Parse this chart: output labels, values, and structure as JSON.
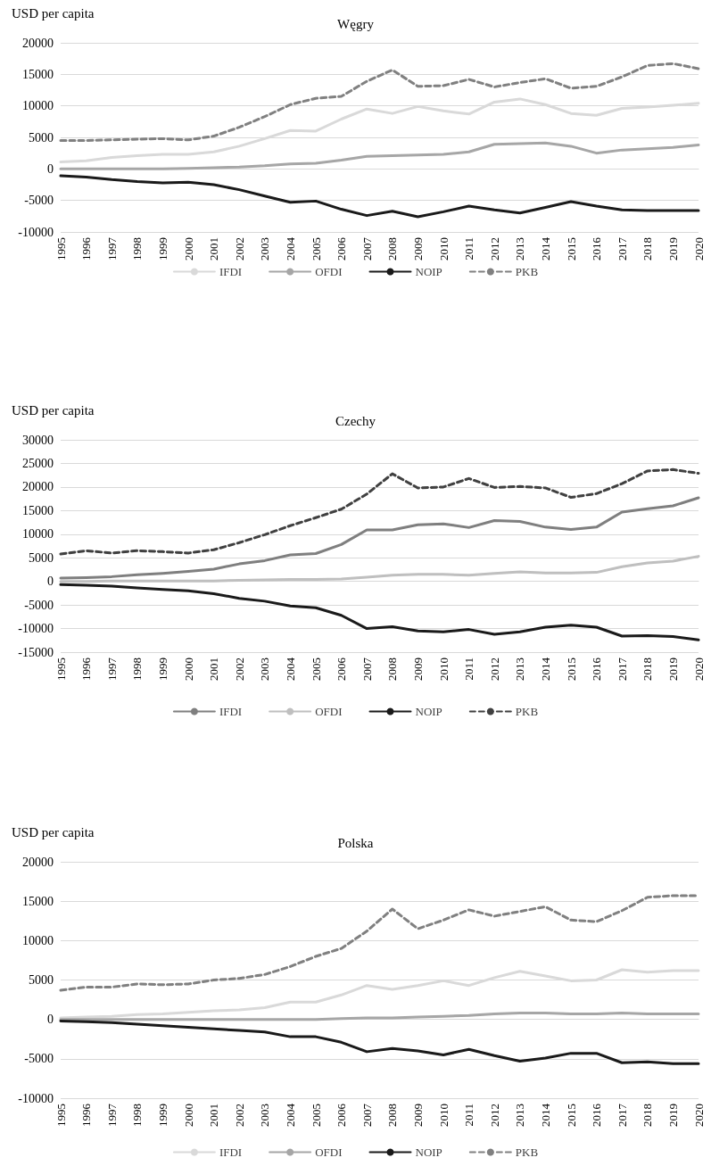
{
  "chart_data": [
    {
      "type": "line",
      "title": "Węgry",
      "ylabel": "USD per capita",
      "categories": [
        "1995",
        "1996",
        "1997",
        "1998",
        "1999",
        "2000",
        "2001",
        "2002",
        "2003",
        "2004",
        "2005",
        "2006",
        "2007",
        "2008",
        "2009",
        "2010",
        "2011",
        "2012",
        "2013",
        "2014",
        "2015",
        "2016",
        "2017",
        "2018",
        "2019",
        "2020"
      ],
      "ylim": [
        -10000,
        20000
      ],
      "yticks": [
        -10000,
        -5000,
        0,
        5000,
        10000,
        15000,
        20000
      ],
      "grid": "y",
      "legend": "bottom",
      "marker": "none",
      "series": [
        {
          "name": "IFDI",
          "color": "#d9d9d9",
          "line_style": "solid",
          "values": [
            1100,
            1300,
            1800,
            2100,
            2300,
            2300,
            2700,
            3600,
            4800,
            6100,
            6000,
            7900,
            9500,
            8800,
            9900,
            9200,
            8700,
            10600,
            11100,
            10200,
            8800,
            8500,
            9600,
            9800,
            10100,
            10400
          ]
        },
        {
          "name": "OFDI",
          "color": "#a6a6a6",
          "line_style": "solid",
          "values": [
            0,
            0,
            0,
            0,
            0,
            100,
            200,
            300,
            500,
            800,
            900,
            1400,
            2000,
            2100,
            2200,
            2300,
            2700,
            3900,
            4000,
            4100,
            3600,
            2500,
            3000,
            3200,
            3400,
            3800
          ]
        },
        {
          "name": "NOIP",
          "color": "#1a1a1a",
          "line_style": "solid",
          "values": [
            -1100,
            -1300,
            -1700,
            -2000,
            -2200,
            -2100,
            -2500,
            -3300,
            -4300,
            -5300,
            -5100,
            -6400,
            -7400,
            -6700,
            -7600,
            -6800,
            -5900,
            -6500,
            -7000,
            -6100,
            -5200,
            -5900,
            -6500,
            -6600,
            -6600,
            -6600
          ]
        },
        {
          "name": "PKB",
          "color": "#808080",
          "line_style": "dashed",
          "values": [
            4500,
            4500,
            4600,
            4700,
            4800,
            4600,
            5200,
            6600,
            8300,
            10200,
            11200,
            11500,
            13900,
            15700,
            13100,
            13200,
            14200,
            13000,
            13700,
            14300,
            12800,
            13100,
            14600,
            16400,
            16700,
            15900
          ]
        }
      ]
    },
    {
      "type": "line",
      "title": "Czechy",
      "ylabel": "USD per capita",
      "categories": [
        "1995",
        "1996",
        "1997",
        "1998",
        "1999",
        "2000",
        "2001",
        "2002",
        "2003",
        "2004",
        "2005",
        "2006",
        "2007",
        "2008",
        "2009",
        "2010",
        "2011",
        "2012",
        "2013",
        "2014",
        "2015",
        "2016",
        "2017",
        "2018",
        "2019",
        "2020"
      ],
      "ylim": [
        -15000,
        30000
      ],
      "yticks": [
        -15000,
        -10000,
        -5000,
        0,
        5000,
        10000,
        15000,
        20000,
        25000,
        30000
      ],
      "grid": "y",
      "legend": "bottom",
      "marker": "none",
      "series": [
        {
          "name": "IFDI",
          "color": "#7f7f7f",
          "line_style": "solid",
          "values": [
            700,
            800,
            1000,
            1400,
            1700,
            2100,
            2600,
            3700,
            4400,
            5600,
            5900,
            7800,
            10900,
            10900,
            12000,
            12200,
            11400,
            12900,
            12700,
            11500,
            11000,
            11500,
            14700,
            15400,
            16000,
            17700
          ]
        },
        {
          "name": "OFDI",
          "color": "#bfbfbf",
          "line_style": "solid",
          "values": [
            0,
            0,
            100,
            100,
            100,
            100,
            100,
            200,
            300,
            400,
            400,
            500,
            900,
            1300,
            1500,
            1500,
            1300,
            1700,
            2000,
            1800,
            1800,
            1900,
            3100,
            3900,
            4300,
            5300
          ]
        },
        {
          "name": "NOIP",
          "color": "#1a1a1a",
          "line_style": "solid",
          "values": [
            -700,
            -800,
            -1000,
            -1400,
            -1700,
            -2000,
            -2600,
            -3600,
            -4200,
            -5200,
            -5600,
            -7200,
            -10000,
            -9600,
            -10500,
            -10700,
            -10200,
            -11200,
            -10700,
            -9700,
            -9300,
            -9700,
            -11600,
            -11500,
            -11700,
            -12400
          ]
        },
        {
          "name": "PKB",
          "color": "#404040",
          "line_style": "dashed",
          "values": [
            5800,
            6500,
            6000,
            6500,
            6300,
            6000,
            6700,
            8200,
            9900,
            11800,
            13500,
            15300,
            18500,
            22800,
            19800,
            20000,
            21800,
            19900,
            20100,
            19800,
            17800,
            18600,
            20700,
            23400,
            23700,
            22900
          ]
        }
      ]
    },
    {
      "type": "line",
      "title": "Polska",
      "ylabel": "USD per capita",
      "categories": [
        "1995",
        "1996",
        "1997",
        "1998",
        "1999",
        "2000",
        "2001",
        "2002",
        "2003",
        "2004",
        "2005",
        "2006",
        "2007",
        "2008",
        "2009",
        "2010",
        "2011",
        "2012",
        "2013",
        "2014",
        "2015",
        "2016",
        "2017",
        "2018",
        "2019",
        "2020"
      ],
      "ylim": [
        -10000,
        20000
      ],
      "yticks": [
        -10000,
        -5000,
        0,
        5000,
        10000,
        15000,
        20000
      ],
      "grid": "y",
      "legend": "bottom",
      "marker": "none",
      "series": [
        {
          "name": "IFDI",
          "color": "#d9d9d9",
          "line_style": "solid",
          "values": [
            200,
            300,
            400,
            600,
            700,
            900,
            1100,
            1200,
            1500,
            2200,
            2200,
            3100,
            4300,
            3800,
            4300,
            4900,
            4300,
            5300,
            6100,
            5500,
            4900,
            5000,
            6300,
            6000,
            6200,
            6200
          ]
        },
        {
          "name": "OFDI",
          "color": "#a6a6a6",
          "line_style": "solid",
          "values": [
            0,
            0,
            0,
            0,
            0,
            0,
            0,
            0,
            0,
            0,
            0,
            100,
            200,
            200,
            300,
            400,
            500,
            700,
            800,
            800,
            700,
            700,
            800,
            700,
            700,
            700
          ]
        },
        {
          "name": "NOIP",
          "color": "#1a1a1a",
          "line_style": "solid",
          "values": [
            -200,
            -300,
            -400,
            -600,
            -800,
            -1000,
            -1200,
            -1400,
            -1600,
            -2200,
            -2200,
            -2900,
            -4100,
            -3700,
            -4000,
            -4500,
            -3800,
            -4600,
            -5300,
            -4900,
            -4300,
            -4300,
            -5500,
            -5400,
            -5600,
            -5600
          ]
        },
        {
          "name": "PKB",
          "color": "#808080",
          "line_style": "dashed",
          "values": [
            3700,
            4100,
            4100,
            4500,
            4400,
            4500,
            5000,
            5200,
            5700,
            6700,
            8000,
            9000,
            11200,
            14000,
            11500,
            12600,
            13900,
            13100,
            13700,
            14300,
            12600,
            12400,
            13800,
            15500,
            15700,
            15700
          ]
        }
      ]
    }
  ]
}
